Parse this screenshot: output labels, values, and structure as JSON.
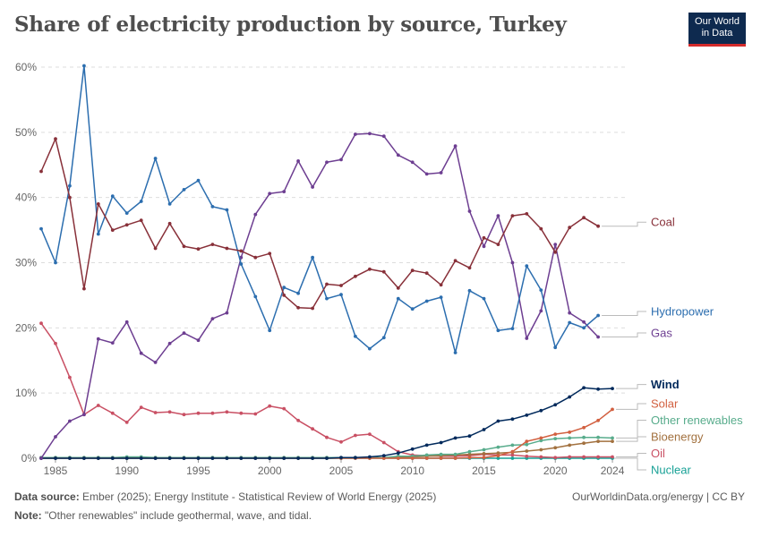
{
  "header": {
    "title": "Share of electricity production by source, Turkey",
    "logo_line1": "Our World",
    "logo_line2": "in Data"
  },
  "footer": {
    "source_label": "Data source:",
    "source_text": "Ember (2025); Energy Institute - Statistical Review of World Energy (2025)",
    "site": "OurWorldinData.org/energy | CC BY",
    "note_label": "Note:",
    "note_text": "\"Other renewables\" include geothermal, wave, and tidal."
  },
  "chart_data": {
    "type": "line",
    "title": "Share of electricity production by source, Turkey",
    "xlim": [
      1984,
      2025
    ],
    "ylim": [
      0,
      60
    ],
    "y_ticks": [
      0,
      10,
      20,
      30,
      40,
      50,
      60
    ],
    "y_tick_labels": [
      "0%",
      "10%",
      "20%",
      "30%",
      "40%",
      "50%",
      "60%"
    ],
    "x_ticks": [
      1985,
      1990,
      1995,
      2000,
      2005,
      2010,
      2015,
      2020,
      2024
    ],
    "x_tick_labels": [
      "1985",
      "1990",
      "1995",
      "2000",
      "2005",
      "2010",
      "2015",
      "2020",
      "2024"
    ],
    "grid": "horizontal dashed",
    "legend": "right, labels at line ends",
    "x": [
      1984,
      1985,
      1986,
      1987,
      1988,
      1989,
      1990,
      1991,
      1992,
      1993,
      1994,
      1995,
      1996,
      1997,
      1998,
      1999,
      2000,
      2001,
      2002,
      2003,
      2004,
      2005,
      2006,
      2007,
      2008,
      2009,
      2010,
      2011,
      2012,
      2013,
      2014,
      2015,
      2016,
      2017,
      2018,
      2019,
      2020,
      2021,
      2022,
      2023,
      2024,
      2025
    ],
    "series": [
      {
        "name": "Coal",
        "color": "#883039",
        "values": [
          44,
          49,
          40,
          26,
          39,
          35,
          35.8,
          36.5,
          32.2,
          36,
          32.5,
          32.1,
          32.8,
          32.2,
          31.8,
          30.8,
          31.4,
          25,
          23.1,
          23,
          26.7,
          26.5,
          27.9,
          29,
          28.6,
          26.1,
          28.8,
          28.4,
          26.6,
          30.3,
          29.2,
          33.8,
          32.8,
          37.2,
          37.5,
          35.2,
          31.6,
          35.4,
          36.9,
          35.6,
          null,
          null
        ]
      },
      {
        "name": "Hydropower",
        "color": "#2c6eaf",
        "values": [
          35.2,
          30,
          41.8,
          60.2,
          34.4,
          40.2,
          37.6,
          39.4,
          46,
          39,
          41.2,
          42.6,
          38.6,
          38.1,
          29.8,
          24.8,
          19.6,
          26.2,
          25.3,
          30.8,
          24.5,
          25.1,
          18.7,
          16.8,
          18.5,
          24.5,
          22.9,
          24.1,
          24.7,
          16.2,
          25.7,
          24.5,
          19.6,
          19.9,
          29.5,
          25.8,
          17,
          20.8,
          20,
          21.9,
          null,
          null
        ]
      },
      {
        "name": "Gas",
        "color": "#6d3e91",
        "values": [
          0,
          3.3,
          5.7,
          6.7,
          18.3,
          17.7,
          20.9,
          16.1,
          14.7,
          17.6,
          19.2,
          18.1,
          21.4,
          22.3,
          30.8,
          37.4,
          40.6,
          40.9,
          45.6,
          41.6,
          45.4,
          45.8,
          49.7,
          49.8,
          49.4,
          46.5,
          45.4,
          43.6,
          43.8,
          47.9,
          37.9,
          32.5,
          37.2,
          30,
          18.4,
          22.6,
          32.8,
          22.3,
          20.9,
          18.6,
          null,
          null
        ]
      },
      {
        "name": "Wind",
        "color": "#00295b",
        "values": [
          0,
          0,
          0,
          0,
          0,
          0,
          0,
          0,
          0,
          0,
          0,
          0,
          0,
          0,
          0,
          0,
          0,
          0,
          0,
          0,
          0,
          0.1,
          0.1,
          0.2,
          0.4,
          0.8,
          1.4,
          2,
          2.4,
          3.1,
          3.4,
          4.4,
          5.7,
          6,
          6.6,
          7.3,
          8.2,
          9.4,
          10.8,
          10.6,
          10.7,
          null
        ]
      },
      {
        "name": "Solar",
        "color": "#d26040",
        "values": [
          0,
          0,
          0,
          0,
          0,
          0,
          0,
          0,
          0,
          0,
          0,
          0,
          0,
          0,
          0,
          0,
          0,
          0,
          0,
          0,
          0,
          0,
          0,
          0,
          0,
          0,
          0,
          0,
          0,
          0,
          0.1,
          0.1,
          0.4,
          1,
          2.6,
          3.1,
          3.7,
          4,
          4.7,
          5.8,
          7.5,
          null
        ]
      },
      {
        "name": "Other renewables",
        "color": "#58ac8c",
        "values": [
          0.1,
          0.1,
          0.1,
          0.1,
          0.1,
          0.1,
          0.2,
          0.2,
          0.1,
          0.1,
          0.1,
          0.1,
          0.1,
          0.1,
          0.1,
          0.1,
          0.1,
          0.1,
          0.1,
          0.1,
          0.1,
          0.1,
          0.1,
          0.1,
          0.1,
          0.3,
          0.3,
          0.5,
          0.6,
          0.6,
          1,
          1.3,
          1.7,
          2,
          2.1,
          2.7,
          3,
          3.1,
          3.2,
          3.2,
          3.1,
          null
        ]
      },
      {
        "name": "Bioenergy",
        "color": "#a2713f",
        "values": [
          0.1,
          0.1,
          0.1,
          0.1,
          0.1,
          0.1,
          0.1,
          0.1,
          0.1,
          0.1,
          0.1,
          0.1,
          0.1,
          0.1,
          0.1,
          0.1,
          0.1,
          0.1,
          0.1,
          0.1,
          0.1,
          0.1,
          0.1,
          0.1,
          0.1,
          0.1,
          0.2,
          0.3,
          0.4,
          0.5,
          0.6,
          0.7,
          0.8,
          0.9,
          1.1,
          1.3,
          1.6,
          2,
          2.3,
          2.6,
          2.6,
          null
        ]
      },
      {
        "name": "Oil",
        "color": "#c95064",
        "values": [
          20.7,
          17.6,
          12.4,
          6.7,
          8.1,
          6.9,
          5.5,
          7.8,
          7,
          7.1,
          6.7,
          6.9,
          6.9,
          7.1,
          6.9,
          6.8,
          8,
          7.6,
          5.8,
          4.5,
          3.2,
          2.5,
          3.5,
          3.7,
          2.4,
          1,
          0.5,
          0.4,
          0.3,
          0.3,
          0.4,
          0.6,
          0.5,
          0.5,
          0.3,
          0.2,
          0.1,
          0.2,
          0.2,
          0.2,
          0.2,
          null
        ]
      },
      {
        "name": "Nuclear",
        "color": "#18a196",
        "values": [
          0,
          0,
          0,
          0,
          0,
          0,
          0,
          0,
          0,
          0,
          0,
          0,
          0,
          0,
          0,
          0,
          0,
          0,
          0,
          0,
          0,
          0,
          0,
          0,
          0,
          0,
          0,
          0,
          0,
          0,
          0,
          0,
          0,
          0,
          0,
          0,
          0,
          0,
          0,
          0,
          0,
          null
        ]
      }
    ]
  }
}
